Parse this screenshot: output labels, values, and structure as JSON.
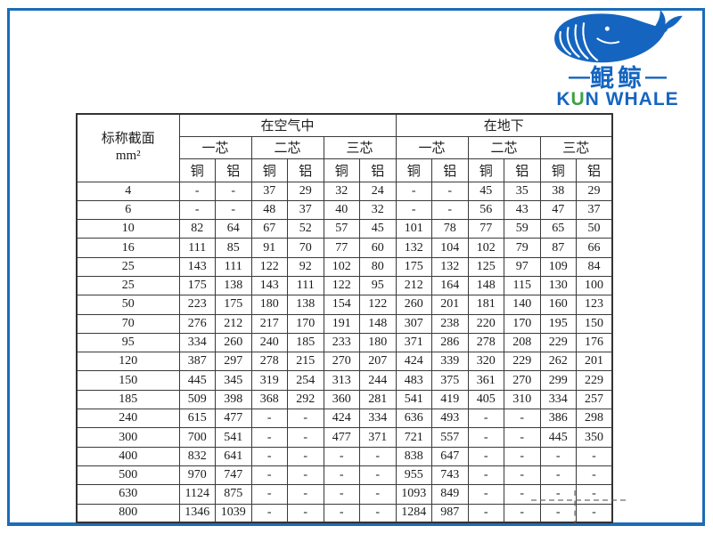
{
  "page": {
    "frame_color": "#1b6cb8",
    "background": "#ffffff"
  },
  "logo": {
    "dash_left": "—",
    "brand_cn": "鲲鲸",
    "dash_right": "—",
    "en_k": "K",
    "en_u": "U",
    "en_rest": "N WHALE",
    "blue": "#1565c0",
    "green": "#3fa142",
    "whale_icon": "whale-icon"
  },
  "table": {
    "corner": {
      "line1": "标称截面",
      "line2": "mm²"
    },
    "group_air": "在空气中",
    "group_ground": "在地下",
    "core1": "一芯",
    "core2": "二芯",
    "core3": "三芯",
    "cu": "铜",
    "al": "铝",
    "rows": [
      {
        "size": "4",
        "values": [
          "-",
          "-",
          "37",
          "29",
          "32",
          "24",
          "-",
          "-",
          "45",
          "35",
          "38",
          "29"
        ]
      },
      {
        "size": "6",
        "values": [
          "-",
          "-",
          "48",
          "37",
          "40",
          "32",
          "-",
          "-",
          "56",
          "43",
          "47",
          "37"
        ]
      },
      {
        "size": "10",
        "values": [
          "82",
          "64",
          "67",
          "52",
          "57",
          "45",
          "101",
          "78",
          "77",
          "59",
          "65",
          "50"
        ]
      },
      {
        "size": "16",
        "values": [
          "111",
          "85",
          "91",
          "70",
          "77",
          "60",
          "132",
          "104",
          "102",
          "79",
          "87",
          "66"
        ]
      },
      {
        "size": "25",
        "values": [
          "143",
          "111",
          "122",
          "92",
          "102",
          "80",
          "175",
          "132",
          "125",
          "97",
          "109",
          "84"
        ]
      },
      {
        "size": "25",
        "values": [
          "175",
          "138",
          "143",
          "111",
          "122",
          "95",
          "212",
          "164",
          "148",
          "115",
          "130",
          "100"
        ]
      },
      {
        "size": "50",
        "values": [
          "223",
          "175",
          "180",
          "138",
          "154",
          "122",
          "260",
          "201",
          "181",
          "140",
          "160",
          "123"
        ]
      },
      {
        "size": "70",
        "values": [
          "276",
          "212",
          "217",
          "170",
          "191",
          "148",
          "307",
          "238",
          "220",
          "170",
          "195",
          "150"
        ]
      },
      {
        "size": "95",
        "values": [
          "334",
          "260",
          "240",
          "185",
          "233",
          "180",
          "371",
          "286",
          "278",
          "208",
          "229",
          "176"
        ]
      },
      {
        "size": "120",
        "values": [
          "387",
          "297",
          "278",
          "215",
          "270",
          "207",
          "424",
          "339",
          "320",
          "229",
          "262",
          "201"
        ]
      },
      {
        "size": "150",
        "values": [
          "445",
          "345",
          "319",
          "254",
          "313",
          "244",
          "483",
          "375",
          "361",
          "270",
          "299",
          "229"
        ]
      },
      {
        "size": "185",
        "values": [
          "509",
          "398",
          "368",
          "292",
          "360",
          "281",
          "541",
          "419",
          "405",
          "310",
          "334",
          "257"
        ]
      },
      {
        "size": "240",
        "values": [
          "615",
          "477",
          "-",
          "-",
          "424",
          "334",
          "636",
          "493",
          "-",
          "-",
          "386",
          "298"
        ]
      },
      {
        "size": "300",
        "values": [
          "700",
          "541",
          "-",
          "-",
          "477",
          "371",
          "721",
          "557",
          "-",
          "-",
          "445",
          "350"
        ]
      },
      {
        "size": "400",
        "values": [
          "832",
          "641",
          "-",
          "-",
          "-",
          "-",
          "838",
          "647",
          "-",
          "-",
          "-",
          "-"
        ]
      },
      {
        "size": "500",
        "values": [
          "970",
          "747",
          "-",
          "-",
          "-",
          "-",
          "955",
          "743",
          "-",
          "-",
          "-",
          "-"
        ]
      },
      {
        "size": "630",
        "values": [
          "1124",
          "875",
          "-",
          "-",
          "-",
          "-",
          "1093",
          "849",
          "-",
          "-",
          "-",
          "-"
        ]
      },
      {
        "size": "800",
        "values": [
          "1346",
          "1039",
          "-",
          "-",
          "-",
          "-",
          "1284",
          "987",
          "-",
          "-",
          "-",
          "-"
        ]
      }
    ]
  }
}
